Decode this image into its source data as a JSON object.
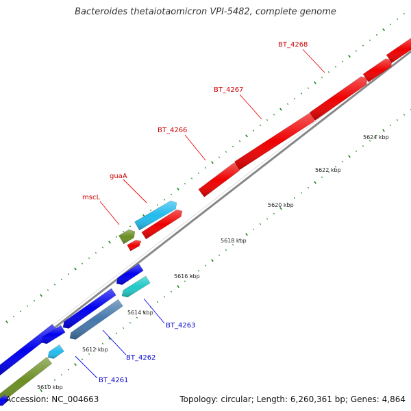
{
  "title": "Bacteroides thetaiotaomicron VPI-5482, complete genome",
  "footer": {
    "accession": "Accession: NC_004663",
    "summary": "Topology: circular; Length: 6,260,361 bp; Genes: 4,864"
  },
  "colors": {
    "red": "#ee0000",
    "blue": "#0000ee",
    "light_blue": "#22bbee",
    "steel_blue": "#4477aa",
    "teal": "#22c8c8",
    "olive": "#6b8e23",
    "backbone": "#999999",
    "ticks": "#118811",
    "red_label": "#cc0000",
    "blue_label": "#0000cc"
  },
  "scale_labels": [
    "5610 kbp",
    "5612 kbp",
    "5614 kbp",
    "5616 kbp",
    "5618 kbp",
    "5620 kbp",
    "5622 kbp",
    "5624 kbp"
  ],
  "forward_labels": [
    "mscL",
    "guaA",
    "BT_4266",
    "BT_4267",
    "BT_4268"
  ],
  "reverse_labels": [
    "BT_4261",
    "BT_4262",
    "BT_4263"
  ]
}
